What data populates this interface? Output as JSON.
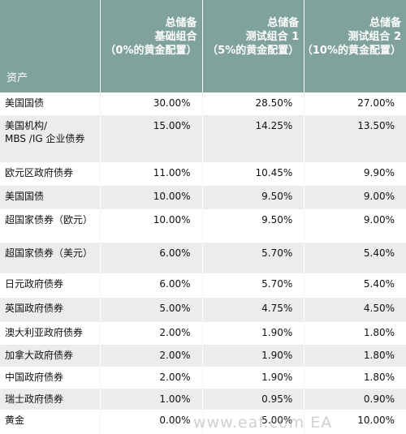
{
  "header": {
    "asset_label": "资产",
    "columns": [
      [
        "总储备",
        "基础组合",
        "（0%的黄金配置）"
      ],
      [
        "总储备",
        "测试组合 1",
        "（5%的黄金配置）"
      ],
      [
        "总储备",
        "测试组合 2",
        "（10%的黄金配置）"
      ]
    ]
  },
  "rows": [
    {
      "name": [
        "美国国债"
      ],
      "values": [
        "30.00%",
        "28.50%",
        "27.00%"
      ]
    },
    {
      "name": [
        "美国机构/",
        "MBS /IG 企业债券"
      ],
      "values": [
        "15.00%",
        "14.25%",
        "13.50%"
      ]
    },
    {
      "name": [
        "欧元区政府债券"
      ],
      "values": [
        "11.00%",
        "10.45%",
        "9.90%"
      ]
    },
    {
      "name": [
        "美国国债"
      ],
      "values": [
        "10.00%",
        "9.50%",
        "9.00%"
      ]
    },
    {
      "name": [
        "超国家债券（欧元）"
      ],
      "values": [
        "10.00%",
        "9.50%",
        "9.00%"
      ]
    },
    {
      "name": [
        "超国家债券（美元）"
      ],
      "values": [
        "6.00%",
        "5.70%",
        "5.40%"
      ]
    },
    {
      "name": [
        "日元政府债券"
      ],
      "values": [
        "6.00%",
        "5.70%",
        "5.40%"
      ]
    },
    {
      "name": [
        "英国政府债券"
      ],
      "values": [
        "5.00%",
        "4.75%",
        "4.50%"
      ]
    },
    {
      "name": [
        "澳大利亚政府债券"
      ],
      "values": [
        "2.00%",
        "1.90%",
        "1.80%"
      ]
    },
    {
      "name": [
        "加拿大政府债券"
      ],
      "values": [
        "2.00%",
        "1.90%",
        "1.80%"
      ]
    },
    {
      "name": [
        "中国政府债券"
      ],
      "values": [
        "2.00%",
        "1.90%",
        "1.80%"
      ]
    },
    {
      "name": [
        "瑞士政府债券"
      ],
      "values": [
        "1.00%",
        "0.95%",
        "0.90%"
      ]
    },
    {
      "name": [
        "黄金"
      ],
      "values": [
        "0.00%",
        "5.00%",
        "10.00%"
      ]
    }
  ],
  "watermark": "www.eaf.com  EA"
}
